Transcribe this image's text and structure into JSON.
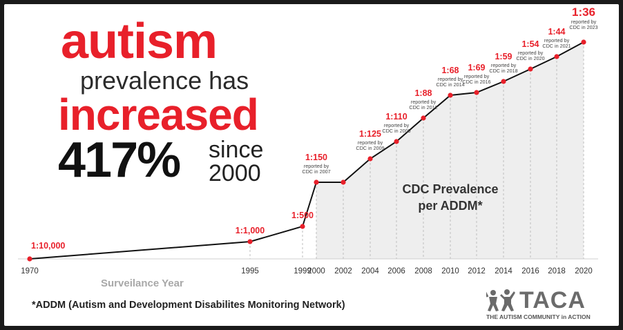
{
  "headline": {
    "line1": "autism",
    "line2": "prevalence has",
    "line3": "increased",
    "line4_pct": "417%",
    "line4_since": "since",
    "line4_year": "2000"
  },
  "chart_data": {
    "type": "line",
    "title": "CDC Prevalence per ADDM*",
    "xlabel": "Surveilance Year",
    "ylabel": "",
    "x_ticks": [
      "1970",
      "1995",
      "1999",
      "2000",
      "2002",
      "2004",
      "2006",
      "2008",
      "2010",
      "2012",
      "2014",
      "2016",
      "2018",
      "2020"
    ],
    "points": [
      {
        "year": 1970,
        "label": "1:10,000",
        "note": ""
      },
      {
        "year": 1995,
        "label": "1:1,000",
        "note": ""
      },
      {
        "year": 1999,
        "label": "1:500",
        "note": ""
      },
      {
        "year": 2000,
        "label": "1:150",
        "note": "reported by CDC in 2007"
      },
      {
        "year": 2002,
        "label": "",
        "note": ""
      },
      {
        "year": 2004,
        "label": "1:125",
        "note": "reported by CDC in 2009"
      },
      {
        "year": 2006,
        "label": "1:110",
        "note": "reported by CDC in 2009"
      },
      {
        "year": 2008,
        "label": "1:88",
        "note": "reported by CDC in 2012"
      },
      {
        "year": 2010,
        "label": "1:68",
        "note": "reported by CDC in 2014"
      },
      {
        "year": 2012,
        "label": "1:69",
        "note": "reported by CDC in 2016"
      },
      {
        "year": 2014,
        "label": "1:59",
        "note": "reported by CDC in 2018"
      },
      {
        "year": 2016,
        "label": "1:54",
        "note": "reported by CDC in 2020"
      },
      {
        "year": 2018,
        "label": "1:44",
        "note": "reported by CDC in 2021"
      },
      {
        "year": 2020,
        "label": "1:36",
        "note": "reported by CDC in 2023"
      }
    ],
    "values_per_10000": [
      1,
      10,
      20,
      66.7,
      66.7,
      80,
      90.9,
      113.6,
      147.1,
      144.9,
      169.5,
      185.2,
      227.3,
      277.8
    ],
    "line_color": "#111111",
    "marker_color": "#e8202a",
    "label_color": "#e8202a",
    "fill_color": "#eeeeee",
    "grid": false
  },
  "footnote": "*ADDM (Autism and Development Disabilites Monitoring Network)",
  "logo": {
    "name": "TACA",
    "tagline": "THE AUTISM COMMUNITY in ACTION"
  },
  "colors": {
    "accent": "#e8202a",
    "text_dark": "#111111",
    "muted": "#a8a8a8"
  }
}
